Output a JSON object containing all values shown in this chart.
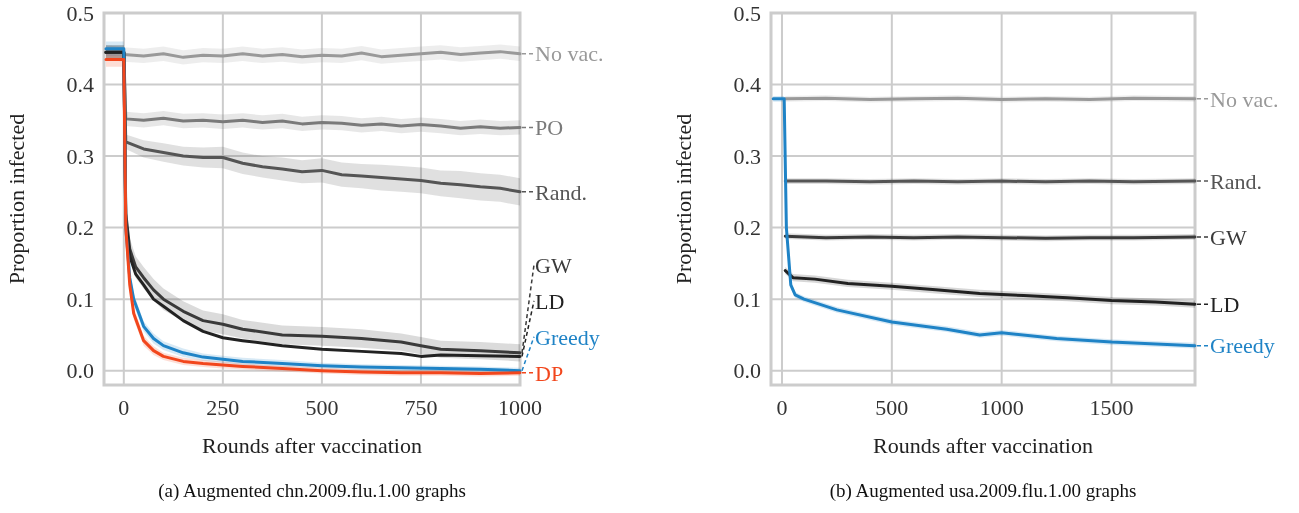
{
  "chart_data": [
    {
      "type": "line",
      "title": "(a) Augmented chn.2009.flu.1.00 graphs",
      "xlabel": "Rounds after vaccination",
      "ylabel": "Proportion infected",
      "xlim": [
        -50,
        1000
      ],
      "xticks": [
        0,
        250,
        500,
        750,
        1000
      ],
      "ylim": [
        -0.02,
        0.5
      ],
      "yticks": [
        {
          "value": 0,
          "label": "0.0"
        },
        0.1,
        0.2,
        0.3,
        0.4,
        0.5
      ],
      "grid": true,
      "legend": "right",
      "marker": "none",
      "line_style": "solid",
      "series": [
        {
          "name": "No vac.",
          "color": "#999999",
          "x": [
            -45,
            0,
            50,
            100,
            150,
            200,
            250,
            300,
            350,
            400,
            450,
            500,
            550,
            600,
            650,
            700,
            750,
            800,
            850,
            900,
            950,
            1000
          ],
          "values": [
            0.445,
            0.442,
            0.44,
            0.443,
            0.438,
            0.441,
            0.44,
            0.443,
            0.44,
            0.442,
            0.439,
            0.441,
            0.44,
            0.444,
            0.439,
            0.441,
            0.443,
            0.445,
            0.442,
            0.444,
            0.446,
            0.443
          ],
          "lower": [
            0.435,
            0.432,
            0.43,
            0.433,
            0.428,
            0.431,
            0.43,
            0.433,
            0.43,
            0.432,
            0.429,
            0.431,
            0.43,
            0.434,
            0.429,
            0.431,
            0.433,
            0.435,
            0.432,
            0.434,
            0.436,
            0.433
          ],
          "upper": [
            0.455,
            0.452,
            0.45,
            0.453,
            0.448,
            0.451,
            0.45,
            0.453,
            0.45,
            0.452,
            0.449,
            0.451,
            0.45,
            0.454,
            0.449,
            0.451,
            0.453,
            0.455,
            0.452,
            0.454,
            0.456,
            0.453
          ]
        },
        {
          "name": "PO",
          "color": "#7a7a7a",
          "x": [
            -45,
            0,
            5,
            50,
            100,
            150,
            200,
            250,
            300,
            350,
            400,
            450,
            500,
            550,
            600,
            650,
            700,
            750,
            800,
            850,
            900,
            950,
            1000
          ],
          "values": [
            0.445,
            0.445,
            0.352,
            0.35,
            0.353,
            0.349,
            0.35,
            0.348,
            0.35,
            0.347,
            0.349,
            0.345,
            0.347,
            0.346,
            0.343,
            0.345,
            0.342,
            0.344,
            0.342,
            0.339,
            0.341,
            0.339,
            0.34
          ],
          "lower": [
            0.435,
            0.435,
            0.342,
            0.34,
            0.343,
            0.339,
            0.34,
            0.338,
            0.34,
            0.337,
            0.339,
            0.335,
            0.337,
            0.336,
            0.333,
            0.335,
            0.332,
            0.334,
            0.332,
            0.329,
            0.331,
            0.329,
            0.33
          ],
          "upper": [
            0.455,
            0.455,
            0.362,
            0.36,
            0.363,
            0.359,
            0.36,
            0.358,
            0.36,
            0.357,
            0.359,
            0.355,
            0.357,
            0.356,
            0.353,
            0.355,
            0.352,
            0.354,
            0.352,
            0.349,
            0.351,
            0.349,
            0.35
          ]
        },
        {
          "name": "Rand.",
          "color": "#555555",
          "x": [
            -45,
            0,
            5,
            50,
            100,
            150,
            200,
            250,
            300,
            350,
            400,
            450,
            500,
            550,
            600,
            650,
            700,
            750,
            800,
            850,
            900,
            950,
            1000
          ],
          "values": [
            0.445,
            0.445,
            0.32,
            0.31,
            0.305,
            0.3,
            0.298,
            0.298,
            0.29,
            0.285,
            0.282,
            0.278,
            0.28,
            0.274,
            0.272,
            0.27,
            0.268,
            0.266,
            0.262,
            0.26,
            0.257,
            0.255,
            0.25
          ],
          "lower": [
            0.435,
            0.435,
            0.31,
            0.298,
            0.292,
            0.287,
            0.284,
            0.283,
            0.275,
            0.27,
            0.266,
            0.262,
            0.263,
            0.257,
            0.255,
            0.252,
            0.25,
            0.248,
            0.244,
            0.241,
            0.238,
            0.236,
            0.231
          ],
          "upper": [
            0.455,
            0.455,
            0.33,
            0.322,
            0.318,
            0.313,
            0.312,
            0.313,
            0.305,
            0.3,
            0.298,
            0.294,
            0.297,
            0.291,
            0.289,
            0.288,
            0.286,
            0.284,
            0.28,
            0.279,
            0.276,
            0.274,
            0.269
          ]
        },
        {
          "name": "GW",
          "color": "#3a3a3a",
          "x": [
            -45,
            0,
            5,
            15,
            30,
            50,
            75,
            100,
            150,
            200,
            250,
            300,
            400,
            500,
            600,
            700,
            750,
            800,
            900,
            1000
          ],
          "values": [
            0.445,
            0.445,
            0.22,
            0.17,
            0.145,
            0.13,
            0.113,
            0.1,
            0.083,
            0.07,
            0.065,
            0.058,
            0.05,
            0.048,
            0.045,
            0.04,
            0.035,
            0.03,
            0.028,
            0.025
          ],
          "lower": [
            0.435,
            0.435,
            0.205,
            0.155,
            0.13,
            0.115,
            0.098,
            0.085,
            0.069,
            0.056,
            0.051,
            0.045,
            0.037,
            0.035,
            0.032,
            0.028,
            0.023,
            0.018,
            0.016,
            0.013
          ],
          "upper": [
            0.455,
            0.455,
            0.235,
            0.185,
            0.16,
            0.145,
            0.128,
            0.115,
            0.097,
            0.084,
            0.079,
            0.071,
            0.063,
            0.061,
            0.058,
            0.052,
            0.047,
            0.042,
            0.04,
            0.037
          ]
        },
        {
          "name": "LD",
          "color": "#222222",
          "x": [
            -45,
            0,
            5,
            15,
            30,
            50,
            75,
            100,
            150,
            200,
            250,
            300,
            400,
            500,
            600,
            700,
            750,
            800,
            900,
            1000
          ],
          "values": [
            0.445,
            0.445,
            0.21,
            0.16,
            0.135,
            0.12,
            0.1,
            0.09,
            0.07,
            0.055,
            0.046,
            0.042,
            0.035,
            0.03,
            0.027,
            0.024,
            0.02,
            0.022,
            0.021,
            0.02
          ]
        },
        {
          "name": "Greedy",
          "color": "#1f83c6",
          "x": [
            -45,
            0,
            5,
            15,
            25,
            50,
            75,
            100,
            150,
            200,
            250,
            300,
            400,
            500,
            600,
            700,
            800,
            900,
            1000
          ],
          "values": [
            0.45,
            0.45,
            0.2,
            0.13,
            0.1,
            0.062,
            0.045,
            0.035,
            0.025,
            0.019,
            0.016,
            0.013,
            0.01,
            0.007,
            0.005,
            0.004,
            0.003,
            0.002,
            0.0
          ],
          "lower": [
            0.44,
            0.44,
            0.19,
            0.12,
            0.092,
            0.055,
            0.038,
            0.029,
            0.019,
            0.014,
            0.011,
            0.008,
            0.005,
            0.003,
            0.001,
            0.0,
            -0.001,
            -0.002,
            -0.004
          ],
          "upper": [
            0.46,
            0.46,
            0.21,
            0.14,
            0.108,
            0.069,
            0.052,
            0.041,
            0.031,
            0.024,
            0.021,
            0.018,
            0.015,
            0.011,
            0.009,
            0.008,
            0.007,
            0.006,
            0.004
          ]
        },
        {
          "name": "DP",
          "color": "#f2461c",
          "x": [
            -45,
            0,
            5,
            15,
            25,
            50,
            75,
            100,
            150,
            200,
            250,
            300,
            400,
            500,
            600,
            700,
            800,
            900,
            1000
          ],
          "values": [
            0.435,
            0.435,
            0.2,
            0.12,
            0.08,
            0.042,
            0.028,
            0.02,
            0.013,
            0.01,
            0.008,
            0.006,
            0.003,
            0.0,
            -0.002,
            -0.003,
            -0.003,
            -0.004,
            -0.003
          ],
          "lower": [
            0.425,
            0.425,
            0.19,
            0.11,
            0.072,
            0.035,
            0.022,
            0.015,
            0.008,
            0.005,
            0.003,
            0.002,
            -0.001,
            -0.004,
            -0.006,
            -0.007,
            -0.007,
            -0.008,
            -0.007
          ],
          "upper": [
            0.445,
            0.445,
            0.21,
            0.13,
            0.088,
            0.049,
            0.034,
            0.025,
            0.018,
            0.015,
            0.013,
            0.01,
            0.007,
            0.004,
            0.002,
            0.001,
            0.001,
            0.0,
            0.001
          ]
        }
      ]
    },
    {
      "type": "line",
      "title": "(b) Augmented usa.2009.flu.1.00 graphs",
      "xlabel": "Rounds after vaccination",
      "ylabel": "Proportion infected",
      "xlim": [
        -50,
        1880
      ],
      "xticks": [
        0,
        500,
        1000,
        1500
      ],
      "ylim": [
        -0.02,
        0.5
      ],
      "yticks": [
        {
          "value": 0,
          "label": "0.0"
        },
        0.1,
        0.2,
        0.3,
        0.4,
        0.5
      ],
      "grid": true,
      "legend": "right",
      "marker": "none",
      "line_style": "solid",
      "series": [
        {
          "name": "No vac.",
          "color": "#999999",
          "x": [
            15,
            200,
            400,
            600,
            800,
            1000,
            1200,
            1400,
            1600,
            1880
          ],
          "values": [
            0.38,
            0.381,
            0.379,
            0.38,
            0.381,
            0.379,
            0.38,
            0.379,
            0.381,
            0.38
          ],
          "lower": [
            0.376,
            0.377,
            0.375,
            0.376,
            0.377,
            0.375,
            0.376,
            0.375,
            0.377,
            0.376
          ],
          "upper": [
            0.384,
            0.385,
            0.383,
            0.384,
            0.385,
            0.383,
            0.384,
            0.383,
            0.385,
            0.384
          ]
        },
        {
          "name": "Rand.",
          "color": "#555555",
          "x": [
            15,
            200,
            400,
            600,
            800,
            1000,
            1200,
            1400,
            1600,
            1880
          ],
          "values": [
            0.265,
            0.265,
            0.264,
            0.265,
            0.264,
            0.265,
            0.264,
            0.265,
            0.264,
            0.265
          ],
          "lower": [
            0.261,
            0.261,
            0.26,
            0.261,
            0.26,
            0.261,
            0.26,
            0.261,
            0.26,
            0.261
          ],
          "upper": [
            0.269,
            0.269,
            0.268,
            0.269,
            0.268,
            0.269,
            0.268,
            0.269,
            0.268,
            0.269
          ]
        },
        {
          "name": "GW",
          "color": "#3a3a3a",
          "x": [
            15,
            200,
            400,
            600,
            800,
            1000,
            1200,
            1400,
            1600,
            1880
          ],
          "values": [
            0.188,
            0.186,
            0.187,
            0.186,
            0.187,
            0.186,
            0.185,
            0.186,
            0.186,
            0.187
          ],
          "lower": [
            0.184,
            0.182,
            0.183,
            0.182,
            0.183,
            0.182,
            0.181,
            0.182,
            0.182,
            0.183
          ],
          "upper": [
            0.192,
            0.19,
            0.191,
            0.19,
            0.191,
            0.19,
            0.189,
            0.19,
            0.19,
            0.191
          ]
        },
        {
          "name": "LD",
          "color": "#222222",
          "x": [
            15,
            50,
            150,
            300,
            500,
            700,
            900,
            1100,
            1300,
            1500,
            1700,
            1880
          ],
          "values": [
            0.14,
            0.13,
            0.128,
            0.122,
            0.118,
            0.113,
            0.108,
            0.105,
            0.102,
            0.098,
            0.096,
            0.093
          ],
          "lower": [
            0.135,
            0.125,
            0.123,
            0.117,
            0.113,
            0.108,
            0.103,
            0.1,
            0.097,
            0.093,
            0.091,
            0.088
          ],
          "upper": [
            0.145,
            0.135,
            0.133,
            0.127,
            0.123,
            0.118,
            0.113,
            0.11,
            0.107,
            0.103,
            0.101,
            0.098
          ]
        },
        {
          "name": "Greedy",
          "color": "#1f83c6",
          "x": [
            -40,
            10,
            20,
            40,
            60,
            100,
            250,
            500,
            750,
            900,
            1000,
            1250,
            1500,
            1880
          ],
          "values": [
            0.38,
            0.38,
            0.2,
            0.12,
            0.106,
            0.1,
            0.085,
            0.068,
            0.058,
            0.05,
            0.053,
            0.045,
            0.04,
            0.035
          ],
          "lower": [
            0.376,
            0.376,
            0.195,
            0.115,
            0.102,
            0.096,
            0.081,
            0.064,
            0.054,
            0.046,
            0.049,
            0.041,
            0.036,
            0.031
          ],
          "upper": [
            0.384,
            0.384,
            0.205,
            0.125,
            0.11,
            0.104,
            0.089,
            0.072,
            0.062,
            0.054,
            0.057,
            0.049,
            0.044,
            0.039
          ]
        }
      ]
    }
  ]
}
